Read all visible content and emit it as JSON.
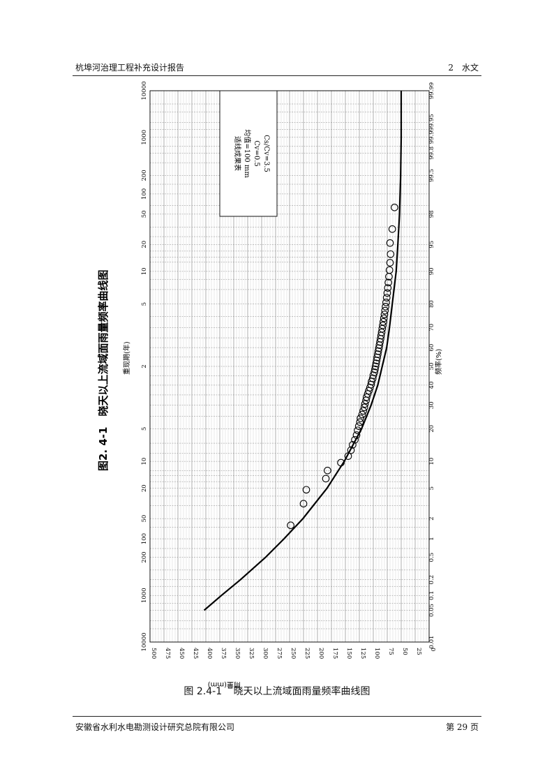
{
  "header": {
    "left": "杭埠河治理工程补充设计报告",
    "right": "2　水文"
  },
  "footer": {
    "left": "安徽省水利水电勘测设计研究总院有限公司",
    "right": "第 29 页"
  },
  "caption": {
    "number": "图 2.4-1",
    "title": "晓天以上流域面雨量频率曲线图"
  },
  "chart_data": {
    "type": "scatter",
    "orientation": "rotated 90° counter-clockwise",
    "title": "图2. 4-1　晓天以上流域面雨量频率曲线图",
    "xlabel": "频率(%)",
    "x2label": "重现期(年)",
    "ylabel": "雨量(mm)",
    "x_scale": "probability (normal)",
    "x_ticks": [
      "0.01",
      "0.05",
      "0.1",
      "0.2",
      "0.5",
      "1",
      "2",
      "5",
      "10",
      "20",
      "30",
      "40",
      "50",
      "60",
      "70",
      "80",
      "90",
      "95",
      "98",
      "99.5",
      "99.8",
      "99.9",
      "99.95",
      "99.99"
    ],
    "x2_ticks": [
      "10000",
      "1000",
      "200",
      "100",
      "50",
      "20",
      "10",
      "5",
      "2",
      "5",
      "10",
      "20",
      "50",
      "100",
      "200",
      "1000",
      "10000"
    ],
    "y_ticks": [
      "500",
      "475",
      "450",
      "425",
      "400",
      "375",
      "350",
      "325",
      "300",
      "275",
      "250",
      "225",
      "200",
      "175",
      "150",
      "125",
      "100",
      "75",
      "50",
      "25",
      "0"
    ],
    "ylim": [
      0,
      500
    ],
    "grid": true,
    "legend": {
      "placement": "top-right",
      "lines": [
        "适线成果表",
        "均值=100 mm",
        "Cv=0.5",
        "Cs/Cv=3.5"
      ]
    },
    "fitted_curve": {
      "x": [
        0.05,
        0.1,
        0.2,
        0.5,
        1,
        2,
        5,
        10,
        20,
        30,
        40,
        50,
        60,
        70,
        80,
        90,
        95,
        98,
        99,
        99.5,
        99.9,
        99.99
      ],
      "y": [
        403,
        372,
        338,
        293,
        260,
        226,
        183,
        152,
        121,
        104,
        92,
        84,
        76,
        71,
        66,
        59,
        56,
        53,
        52,
        51,
        50,
        50
      ]
    },
    "observed_points": {
      "x": [
        1.6,
        3.2,
        4.8,
        6.5,
        8.0,
        9.7,
        11.3,
        12.9,
        14.5,
        16.1,
        17.7,
        19.4,
        21.0,
        22.6,
        24.2,
        25.8,
        27.4,
        29.0,
        30.6,
        32.3,
        33.9,
        35.5,
        37.1,
        38.7,
        40.3,
        41.9,
        43.5,
        45.2,
        46.8,
        48.4,
        50.0,
        51.6,
        53.2,
        54.8,
        56.5,
        58.1,
        59.7,
        61.3,
        62.9,
        64.5,
        66.1,
        67.7,
        69.4,
        71.0,
        72.6,
        74.2,
        75.8,
        77.4,
        79.0,
        80.6,
        82.3,
        83.9,
        85.5,
        87.1,
        88.7,
        90.3,
        91.9,
        93.5,
        95.2,
        96.8,
        98.4
      ],
      "y": [
        248,
        225,
        220,
        185,
        182,
        158,
        145,
        140,
        137,
        133,
        130,
        128,
        126,
        124,
        123,
        120,
        118,
        116,
        115,
        113,
        112,
        110,
        108,
        106,
        104,
        103,
        101,
        100,
        98,
        97,
        96,
        95,
        94,
        93,
        92,
        91,
        90,
        89,
        88,
        87,
        86,
        85,
        84,
        83,
        82,
        81,
        80,
        79,
        78,
        77,
        76,
        75,
        74,
        73,
        72,
        71,
        70,
        69,
        70,
        66,
        62
      ]
    }
  }
}
